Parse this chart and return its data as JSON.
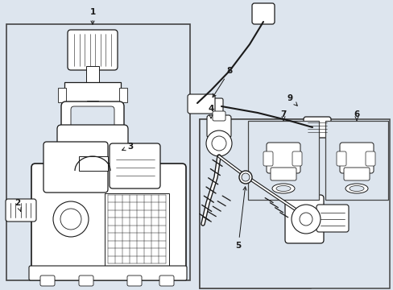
{
  "bg": "#dde5ee",
  "white": "#ffffff",
  "black": "#1a1a1a",
  "border": "#444444",
  "figsize": [
    4.89,
    3.6
  ],
  "dpi": 100,
  "xlim": [
    0,
    489
  ],
  "ylim": [
    0,
    360
  ]
}
